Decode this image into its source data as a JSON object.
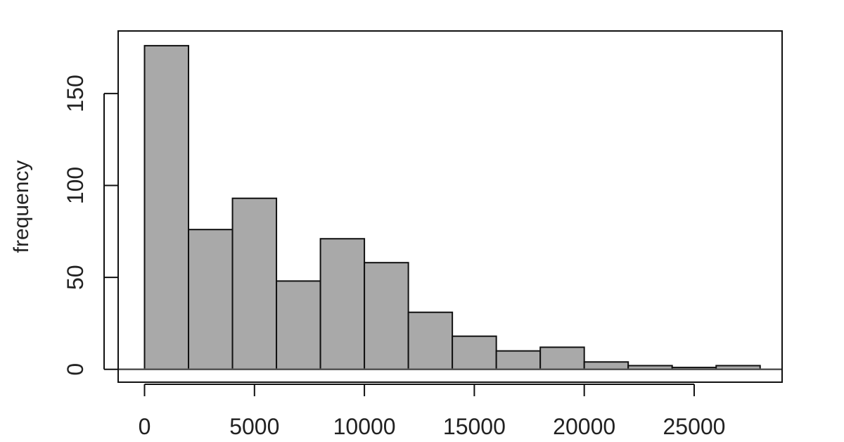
{
  "chart_data": {
    "type": "bar",
    "title": "",
    "xlabel": "",
    "ylabel": "frequency",
    "bins": [
      {
        "x0": 0,
        "x1": 2000,
        "count": 176
      },
      {
        "x0": 2000,
        "x1": 4000,
        "count": 76
      },
      {
        "x0": 4000,
        "x1": 6000,
        "count": 93
      },
      {
        "x0": 6000,
        "x1": 8000,
        "count": 48
      },
      {
        "x0": 8000,
        "x1": 10000,
        "count": 71
      },
      {
        "x0": 10000,
        "x1": 12000,
        "count": 58
      },
      {
        "x0": 12000,
        "x1": 14000,
        "count": 31
      },
      {
        "x0": 14000,
        "x1": 16000,
        "count": 18
      },
      {
        "x0": 16000,
        "x1": 18000,
        "count": 10
      },
      {
        "x0": 18000,
        "x1": 20000,
        "count": 12
      },
      {
        "x0": 20000,
        "x1": 22000,
        "count": 4
      },
      {
        "x0": 22000,
        "x1": 24000,
        "count": 2
      },
      {
        "x0": 24000,
        "x1": 26000,
        "count": 1
      },
      {
        "x0": 26000,
        "x1": 28000,
        "count": 2
      }
    ],
    "xticks": [
      0,
      5000,
      10000,
      15000,
      20000,
      25000
    ],
    "yticks": [
      0,
      50,
      100,
      150
    ],
    "xlim": [
      -1200,
      29000
    ],
    "ylim": [
      -7,
      184
    ],
    "bar_color": "#a9a9a9",
    "grid": false
  }
}
